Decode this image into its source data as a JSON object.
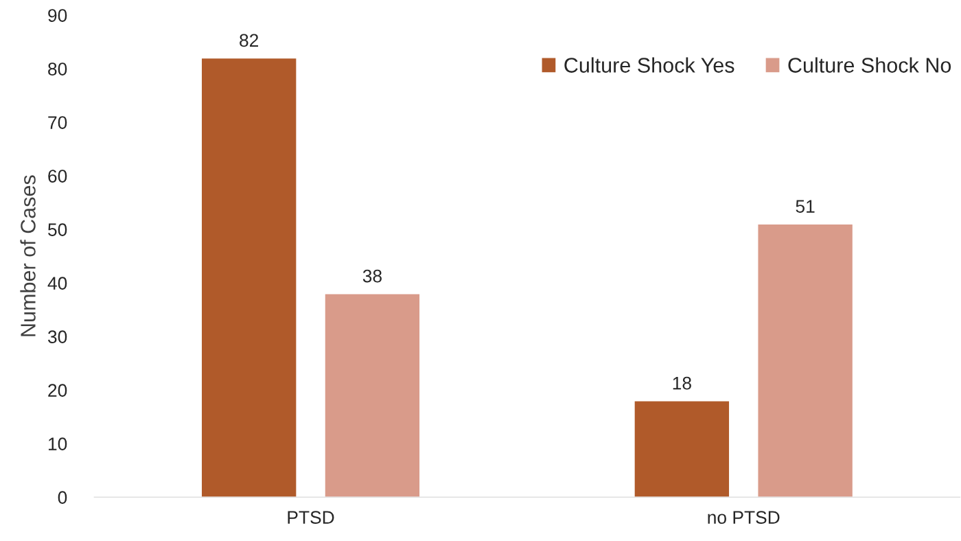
{
  "chart_data": {
    "type": "bar",
    "ylabel": "Number of Cases",
    "categories": [
      "PTSD",
      "no PTSD"
    ],
    "series": [
      {
        "name": "Culture Shock Yes",
        "color": "#b05a2a",
        "values": [
          82,
          18
        ]
      },
      {
        "name": "Culture Shock No",
        "color": "#d99b8a",
        "values": [
          38,
          51
        ]
      }
    ],
    "ylim": [
      0,
      90
    ],
    "yticks": [
      0,
      10,
      20,
      30,
      40,
      50,
      60,
      70,
      80,
      90
    ],
    "data_labels": true,
    "legend": "top right"
  }
}
